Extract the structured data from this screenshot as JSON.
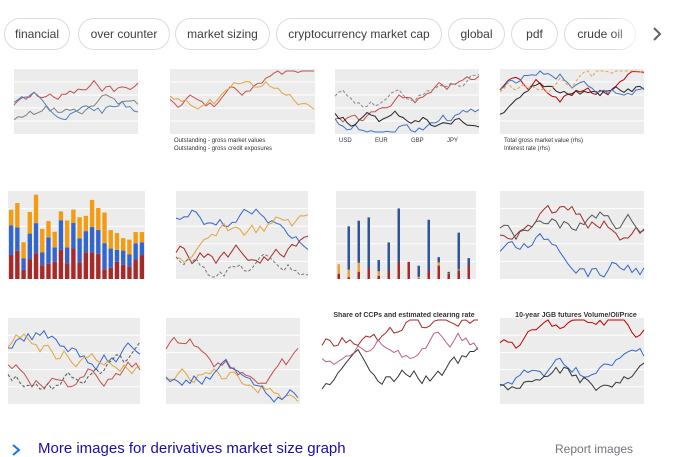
{
  "chips": [
    "financial",
    "over counter",
    "market sizing",
    "cryptocurrency market cap",
    "global",
    "pdf",
    "crude oil"
  ],
  "images": [
    {
      "labels": []
    },
    {
      "labels": [
        "Outstanding - gross market values",
        "Outstanding - gross credit exposures"
      ]
    },
    {
      "labels": [
        "USD",
        "EUR",
        "GBP",
        "JPY"
      ]
    },
    {
      "labels": [
        "Total gross market value (rhs)",
        "Interest rate (rhs)"
      ]
    },
    {
      "labels": []
    },
    {
      "labels": []
    },
    {
      "labels": []
    },
    {
      "labels": []
    },
    {
      "labels": []
    },
    {
      "labels": []
    },
    {
      "labels": [
        "Share of CCPs and estimated clearing rate"
      ]
    },
    {
      "labels": [
        "10-year JGB futures Volume/OI/Price"
      ]
    }
  ],
  "more_images": "More images for derivatives market size graph",
  "report": "Report images"
}
